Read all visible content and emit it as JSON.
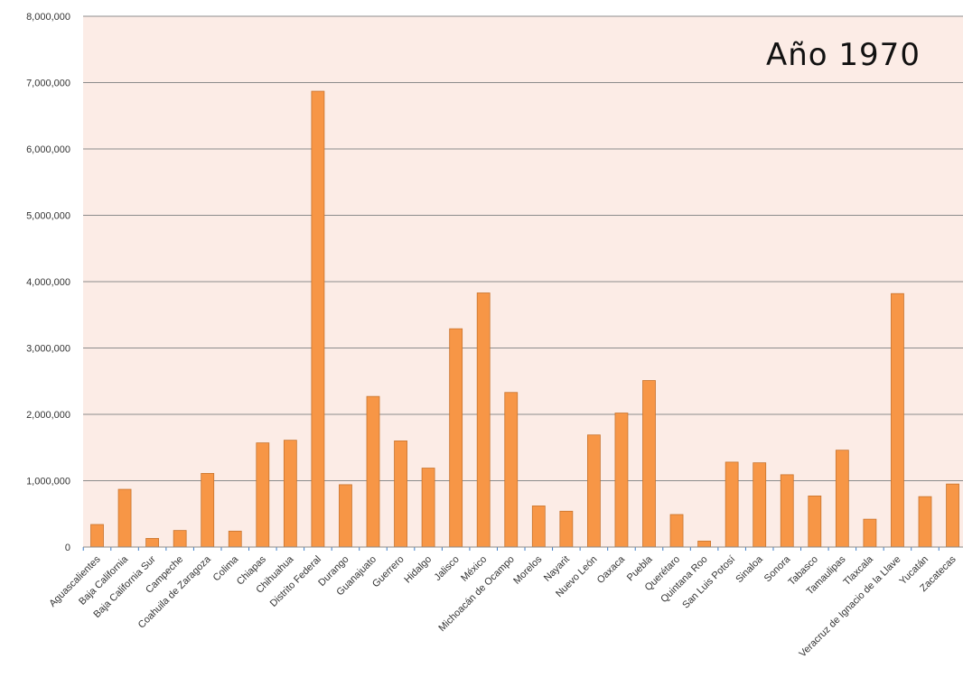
{
  "chart_data": {
    "type": "bar",
    "title": "Año 1970",
    "xlabel": "",
    "ylabel": "",
    "ylim": [
      0,
      8000000
    ],
    "yticks": [
      0,
      1000000,
      2000000,
      3000000,
      4000000,
      5000000,
      6000000,
      7000000,
      8000000
    ],
    "ytick_labels": [
      "0",
      "1,000,000",
      "2,000,000",
      "3,000,000",
      "4,000,000",
      "5,000,000",
      "6,000,000",
      "7,000,000",
      "8,000,000"
    ],
    "grid": true,
    "categories": [
      "Aguascalientes",
      "Baja California",
      "Baja California Sur",
      "Campeche",
      "Coahuila de Zaragoza",
      "Colima",
      "Chiapas",
      "Chihuahua",
      "Distrito Federal",
      "Durango",
      "Guanajuato",
      "Guerrero",
      "Hidalgo",
      "Jalisco",
      "México",
      "Michoacán de Ocampo",
      "Morelos",
      "Nayarit",
      "Nuevo León",
      "Oaxaca",
      "Puebla",
      "Querétaro",
      "Quintana Roo",
      "San Luis Potosí",
      "Sinaloa",
      "Sonora",
      "Tabasco",
      "Tamaulipas",
      "Tlaxcala",
      "Veracruz de Ignacio de la Llave",
      "Yucatán",
      "Zacatecas"
    ],
    "values": [
      340000,
      870000,
      130000,
      250000,
      1110000,
      240000,
      1570000,
      1610000,
      6870000,
      940000,
      2270000,
      1600000,
      1190000,
      3290000,
      3830000,
      2330000,
      620000,
      540000,
      1690000,
      2020000,
      2510000,
      490000,
      90000,
      1280000,
      1270000,
      1090000,
      770000,
      1460000,
      420000,
      3820000,
      760000,
      950000
    ],
    "colors": {
      "bar_fill": "#F79646",
      "bar_stroke": "#C8742E",
      "plot_background": "#FCECE6",
      "gridline": "#8C8C8C",
      "axis": "#8C8C8C"
    }
  }
}
